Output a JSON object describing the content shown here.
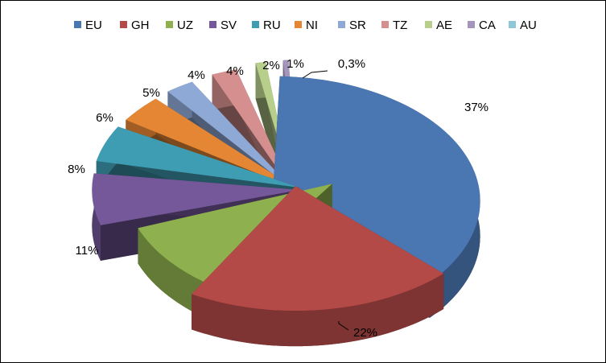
{
  "chart_data": {
    "type": "pie",
    "variant": "3d-exploded",
    "categories": [
      "EU",
      "GH",
      "UZ",
      "SV",
      "RU",
      "NI",
      "SR",
      "TZ",
      "AE",
      "CA",
      "AU"
    ],
    "values": [
      37,
      22,
      11,
      8,
      6,
      5,
      4,
      4,
      2,
      1,
      0.3
    ],
    "data_labels": [
      "37%",
      "22%",
      "11%",
      "8%",
      "6%",
      "5%",
      "4%",
      "4%",
      "2%",
      "1%",
      "0,3%"
    ],
    "colors": [
      "#4a76b2",
      "#b44a47",
      "#8fb04e",
      "#75589a",
      "#3f9db3",
      "#e48634",
      "#8ea9d5",
      "#d48f8e",
      "#b8cf8c",
      "#a595bd",
      "#8ec7d8"
    ],
    "legend_position": "top",
    "title": ""
  }
}
